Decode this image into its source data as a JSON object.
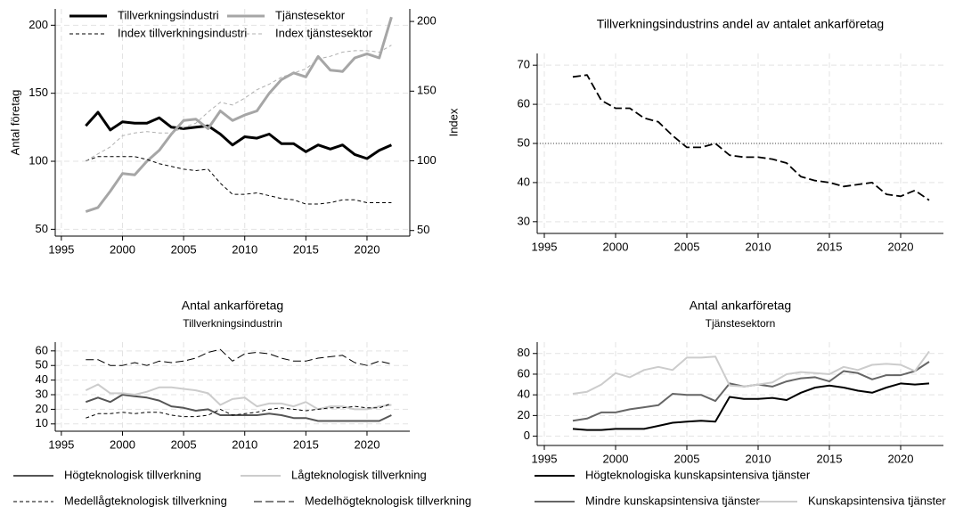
{
  "chart_data": [
    {
      "type": "line",
      "ylabel": "Antal företag",
      "y2label": "Index",
      "x": [
        1997,
        1998,
        1999,
        2000,
        2001,
        2002,
        2003,
        2004,
        2005,
        2006,
        2007,
        2008,
        2009,
        2010,
        2011,
        2012,
        2013,
        2014,
        2015,
        2016,
        2017,
        2018,
        2019,
        2020,
        2021,
        2022
      ],
      "xlim": [
        1994.5,
        2023.5
      ],
      "xticks": [
        1995,
        2000,
        2005,
        2010,
        2015,
        2020
      ],
      "ylim": [
        45,
        212
      ],
      "yticks": [
        50,
        100,
        150,
        200
      ],
      "y2lim": [
        46,
        209
      ],
      "y2ticks": [
        50,
        100,
        150,
        200
      ],
      "grid": true,
      "series": [
        {
          "name": "Tillverkningsindustri",
          "color": "#000000",
          "dash": "solid",
          "width": 3,
          "values": [
            126,
            136,
            123,
            129,
            128,
            128,
            132,
            125,
            124,
            125,
            126,
            120,
            112,
            118,
            117,
            120,
            113,
            113,
            107,
            112,
            109,
            112,
            105,
            102,
            108,
            112
          ]
        },
        {
          "name": "Tjänstesektor",
          "color": "#a6a6a6",
          "dash": "solid",
          "width": 3,
          "values": [
            63,
            66,
            78,
            91,
            90,
            100,
            108,
            120,
            130,
            131,
            124,
            137,
            130,
            134,
            137,
            150,
            160,
            165,
            162,
            177,
            167,
            166,
            176,
            179,
            176,
            206
          ]
        },
        {
          "name": "Index tillverkningsindustri",
          "color": "#000000",
          "dash": "short",
          "width": 1,
          "axis": "y2",
          "values": [
            100,
            103,
            103,
            103,
            103,
            101,
            98,
            96,
            94,
            93,
            94,
            84,
            76,
            76,
            77,
            75,
            73,
            72,
            69,
            69,
            70,
            72,
            72,
            70,
            70,
            70
          ]
        },
        {
          "name": "Index tjänstesektor",
          "color": "#b0b0b0",
          "dash": "short",
          "width": 1,
          "axis": "y2",
          "values": [
            100,
            105,
            110,
            118,
            120,
            121,
            120,
            120,
            124,
            127,
            135,
            142,
            140,
            145,
            151,
            155,
            160,
            163,
            166,
            173,
            175,
            178,
            179,
            179,
            178,
            183
          ]
        }
      ]
    },
    {
      "type": "line",
      "title": "Tillverkningsindustrins andel av antalet ankarföretag",
      "x": [
        1997,
        1998,
        1999,
        2000,
        2001,
        2002,
        2003,
        2004,
        2005,
        2006,
        2007,
        2008,
        2009,
        2010,
        2011,
        2012,
        2013,
        2014,
        2015,
        2016,
        2017,
        2018,
        2019,
        2020,
        2021,
        2022
      ],
      "xlim": [
        1994.5,
        2023
      ],
      "xticks": [
        1995,
        2000,
        2005,
        2010,
        2015,
        2020
      ],
      "ylim": [
        27,
        73
      ],
      "yticks": [
        30,
        40,
        50,
        60,
        70
      ],
      "grid": true,
      "hline": 50,
      "series": [
        {
          "color": "#000000",
          "dash": "long",
          "width": 1.8,
          "values": [
            67,
            67.5,
            61,
            59,
            59,
            56.5,
            55.5,
            52,
            49,
            49,
            50,
            47,
            46.5,
            46.5,
            46,
            45,
            41.5,
            40.5,
            40,
            39,
            39.5,
            40,
            37,
            36.5,
            38,
            35.5
          ]
        }
      ]
    },
    {
      "type": "line",
      "title": "Antal ankarföretag",
      "subtitle": "Tillverkningsindustrin",
      "x": [
        1997,
        1998,
        1999,
        2000,
        2001,
        2002,
        2003,
        2004,
        2005,
        2006,
        2007,
        2008,
        2009,
        2010,
        2011,
        2012,
        2013,
        2014,
        2015,
        2016,
        2017,
        2018,
        2019,
        2020,
        2021,
        2022
      ],
      "xlim": [
        1994.5,
        2023.5
      ],
      "xticks": [
        1995,
        2000,
        2005,
        2010,
        2015,
        2020
      ],
      "ylim": [
        5,
        66
      ],
      "yticks": [
        10,
        20,
        30,
        40,
        50,
        60
      ],
      "grid": true,
      "series": [
        {
          "name": "Högteknologisk tillverkning",
          "color": "#555555",
          "dash": "solid",
          "width": 2,
          "values": [
            25,
            28,
            25,
            30,
            29,
            28,
            26,
            22,
            21,
            19,
            20,
            16,
            16,
            16,
            16,
            17,
            16,
            14,
            14,
            12,
            12,
            12,
            12,
            12,
            12,
            16
          ]
        },
        {
          "name": "Lågteknologisk tillverkning",
          "color": "#cccccc",
          "dash": "solid",
          "width": 2,
          "values": [
            33,
            37,
            31,
            31,
            30,
            32,
            35,
            35,
            34,
            33,
            31,
            23,
            27,
            28,
            22,
            24,
            24,
            22,
            25,
            20,
            22,
            22,
            20,
            20,
            22,
            23
          ]
        },
        {
          "name": "Medellågteknologisk tillverkning",
          "color": "#000000",
          "dash": "short",
          "width": 1,
          "values": [
            14,
            17,
            17,
            18,
            17,
            18,
            18,
            16,
            15,
            15,
            16,
            20,
            16,
            17,
            18,
            20,
            21,
            20,
            19,
            20,
            21,
            21,
            22,
            21,
            21,
            24
          ]
        },
        {
          "name": "Medelhögteknologisk tillverkning",
          "color": "#000000",
          "dash": "long",
          "width": 1,
          "values": [
            54,
            54,
            50,
            50,
            52,
            50,
            53,
            52,
            53,
            55,
            59,
            61,
            53,
            58,
            59,
            58,
            55,
            53,
            53,
            55,
            56,
            57,
            52,
            50,
            53,
            51
          ]
        }
      ]
    },
    {
      "type": "line",
      "title": "Antal ankarföretag",
      "subtitle": "Tjänstesektorn",
      "x": [
        1997,
        1998,
        1999,
        2000,
        2001,
        2002,
        2003,
        2004,
        2005,
        2006,
        2007,
        2008,
        2009,
        2010,
        2011,
        2012,
        2013,
        2014,
        2015,
        2016,
        2017,
        2018,
        2019,
        2020,
        2021,
        2022
      ],
      "xlim": [
        1994.5,
        2023
      ],
      "xticks": [
        1995,
        2000,
        2005,
        2010,
        2015,
        2020
      ],
      "ylim": [
        -9,
        91
      ],
      "yticks": [
        0,
        20,
        40,
        60,
        80
      ],
      "grid": true,
      "series": [
        {
          "name": "Högteknologiska kunskapsintensiva tjänster",
          "color": "#000000",
          "dash": "solid",
          "width": 2,
          "values": [
            7,
            6,
            6,
            7,
            7,
            7,
            10,
            13,
            14,
            15,
            14,
            38,
            36,
            36,
            37,
            35,
            42,
            47,
            49,
            47,
            44,
            42,
            47,
            51,
            50,
            51
          ]
        },
        {
          "name": "Mindre kunskapsintensiva tjänster",
          "color": "#666666",
          "dash": "solid",
          "width": 2,
          "values": [
            15,
            17,
            23,
            23,
            26,
            28,
            30,
            41,
            40,
            40,
            34,
            51,
            48,
            50,
            48,
            53,
            56,
            57,
            53,
            63,
            61,
            55,
            59,
            59,
            63,
            72
          ]
        },
        {
          "name": "Kunskapsintensiva tjänster",
          "color": "#cccccc",
          "dash": "solid",
          "width": 2,
          "values": [
            41,
            43,
            50,
            61,
            57,
            64,
            67,
            64,
            76,
            76,
            77,
            49,
            48,
            50,
            52,
            60,
            62,
            61,
            60,
            67,
            64,
            69,
            70,
            69,
            63,
            82
          ]
        }
      ]
    }
  ]
}
